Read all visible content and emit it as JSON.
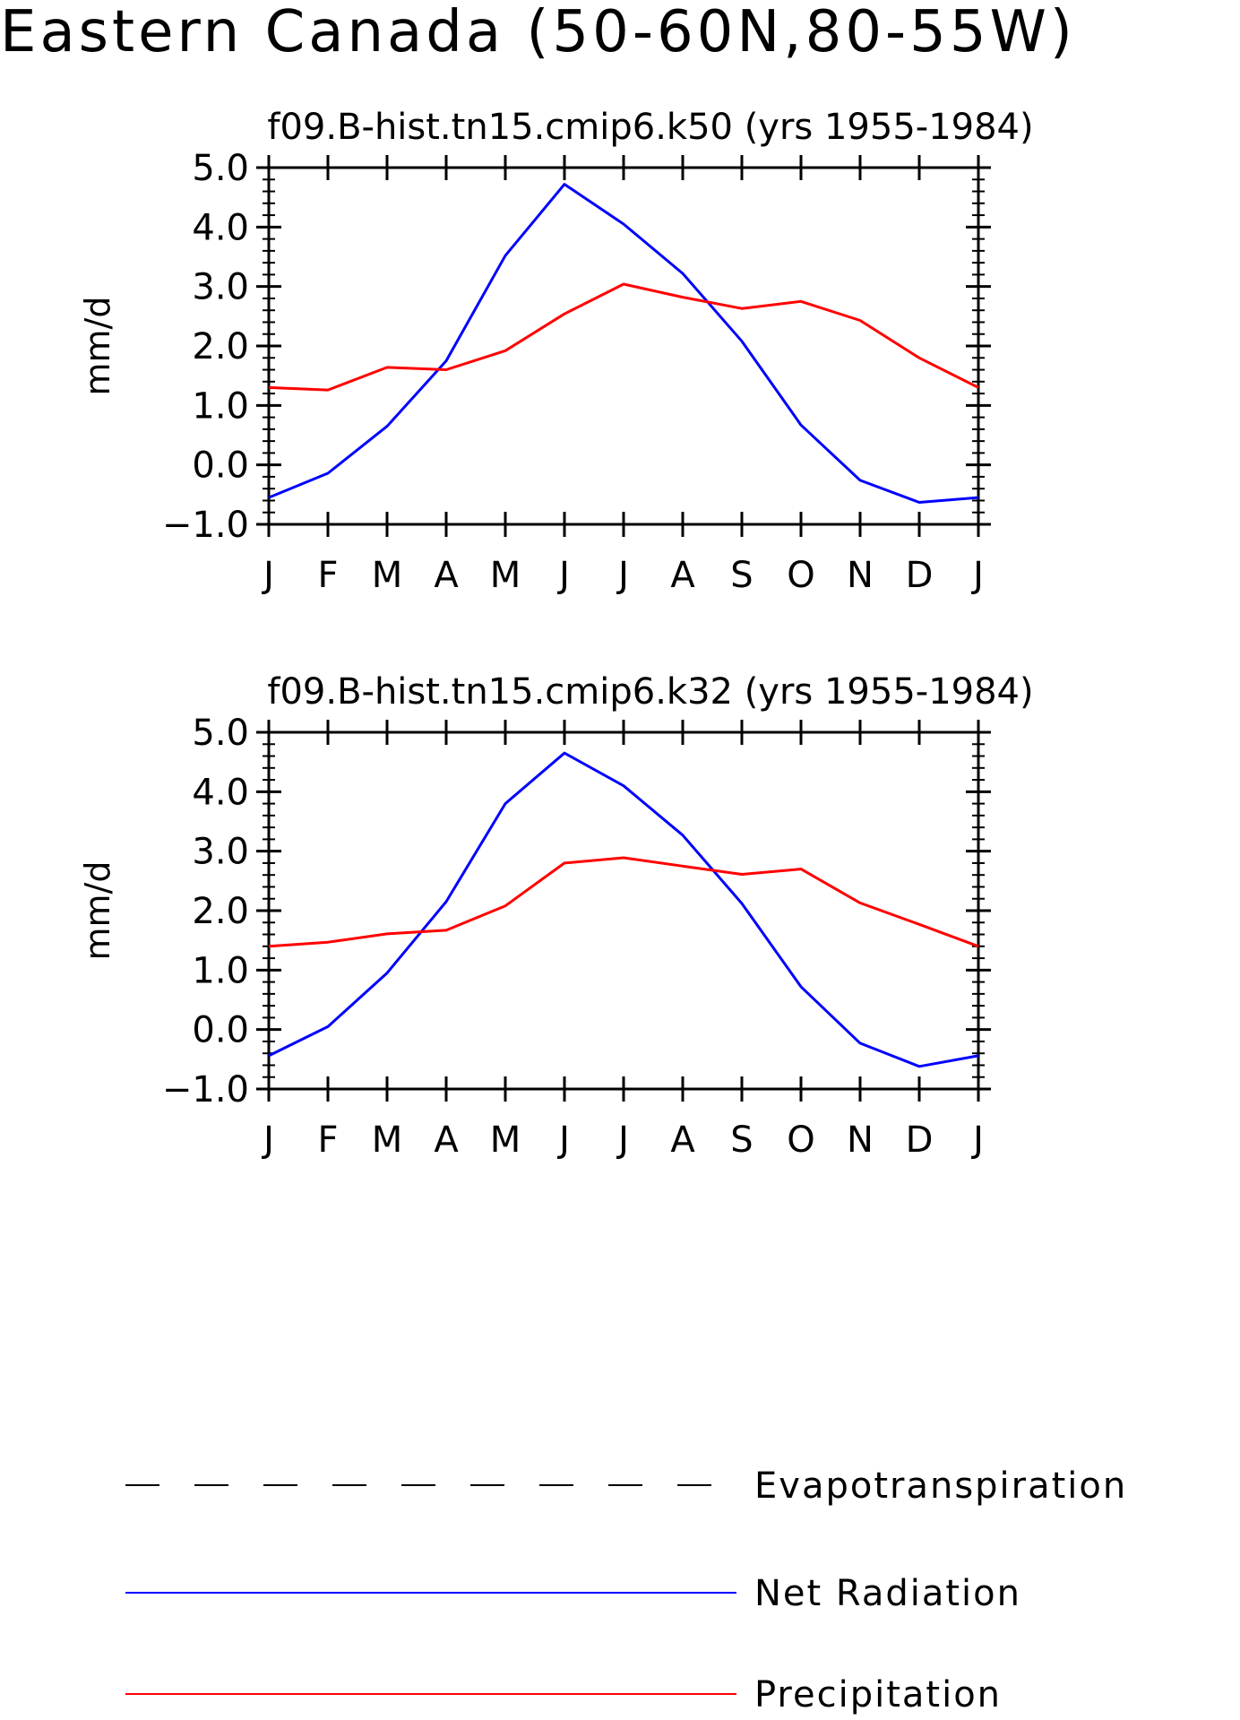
{
  "page": {
    "title": "Eastern Canada (50-60N,80-55W)"
  },
  "legend": [
    {
      "label": "Evapotranspiration",
      "color": "#000000",
      "style": "dashed"
    },
    {
      "label": "Net Radiation",
      "color": "#0000ff",
      "style": "solid"
    },
    {
      "label": "Precipitation",
      "color": "#ff0000",
      "style": "solid"
    }
  ],
  "chart_data": [
    {
      "type": "line",
      "title": "f09.B-hist.tn15.cmip6.k50 (yrs 1955-1984)",
      "xlabel": "",
      "ylabel": "mm/d",
      "ylim": [
        -1.0,
        5.0
      ],
      "yticks": [
        "5.0",
        "4.0",
        "3.0",
        "2.0",
        "1.0",
        "0.0",
        "-1.0"
      ],
      "categories": [
        "J",
        "F",
        "M",
        "A",
        "M",
        "J",
        "J",
        "A",
        "S",
        "O",
        "N",
        "D",
        "J"
      ],
      "grid": false,
      "series": [
        {
          "name": "Net Radiation",
          "color": "#0000ff",
          "values": [
            -0.55,
            -0.14,
            0.65,
            1.75,
            3.52,
            4.72,
            4.05,
            3.22,
            2.08,
            0.67,
            -0.26,
            -0.63,
            -0.55
          ]
        },
        {
          "name": "Precipitation",
          "color": "#ff0000",
          "values": [
            1.3,
            1.26,
            1.64,
            1.6,
            1.92,
            2.54,
            3.04,
            2.82,
            2.63,
            2.75,
            2.43,
            1.8,
            1.3
          ]
        }
      ]
    },
    {
      "type": "line",
      "title": "f09.B-hist.tn15.cmip6.k32 (yrs 1955-1984)",
      "xlabel": "",
      "ylabel": "mm/d",
      "ylim": [
        -1.0,
        5.0
      ],
      "yticks": [
        "5.0",
        "4.0",
        "3.0",
        "2.0",
        "1.0",
        "0.0",
        "-1.0"
      ],
      "categories": [
        "J",
        "F",
        "M",
        "A",
        "M",
        "J",
        "J",
        "A",
        "S",
        "O",
        "N",
        "D",
        "J"
      ],
      "grid": false,
      "series": [
        {
          "name": "Net Radiation",
          "color": "#0000ff",
          "values": [
            -0.44,
            0.05,
            0.95,
            2.15,
            3.8,
            4.65,
            4.1,
            3.27,
            2.12,
            0.72,
            -0.23,
            -0.62,
            -0.44
          ]
        },
        {
          "name": "Precipitation",
          "color": "#ff0000",
          "values": [
            1.4,
            1.47,
            1.61,
            1.67,
            2.08,
            2.8,
            2.89,
            2.75,
            2.61,
            2.7,
            2.13,
            1.77,
            1.4
          ]
        }
      ]
    }
  ]
}
